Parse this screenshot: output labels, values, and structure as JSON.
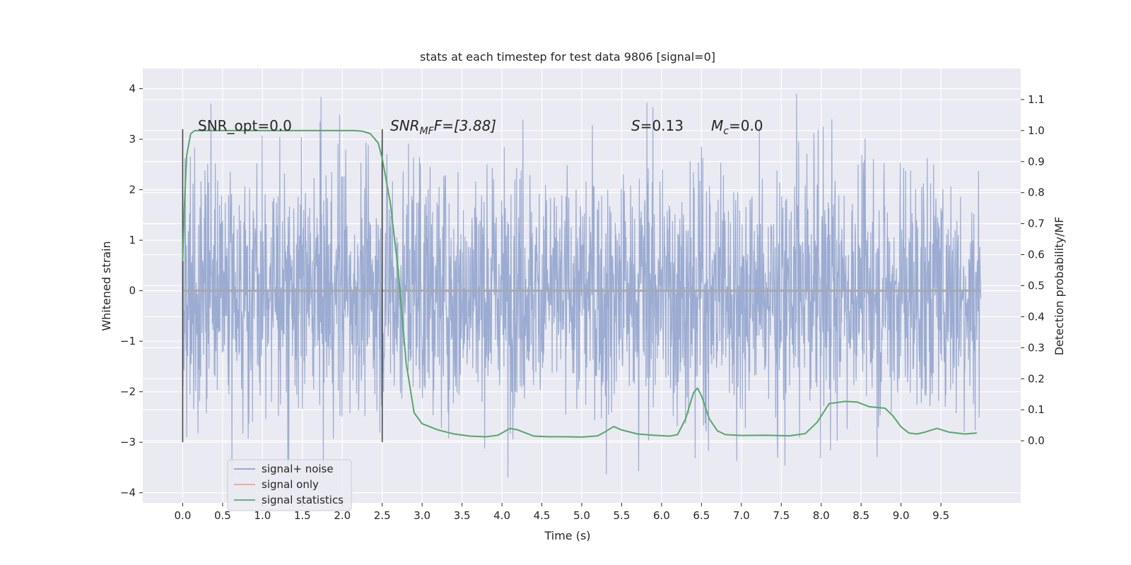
{
  "chart_data": {
    "type": "line",
    "title": "stats at each timestep for test data 9806 [signal=0]",
    "xlabel": "Time (s)",
    "ylabel": "Whitened strain",
    "ylabel_right": "Detection probability/MF",
    "xlim": [
      -0.5,
      10.5
    ],
    "ylim": [
      -4.2,
      4.4
    ],
    "ylim_right": [
      -0.2,
      1.2
    ],
    "x_ticks": [
      "0.0",
      "0.5",
      "1.0",
      "1.5",
      "2.0",
      "2.5",
      "3.0",
      "3.5",
      "4.0",
      "4.5",
      "5.0",
      "5.5",
      "6.0",
      "6.5",
      "7.0",
      "7.5",
      "8.0",
      "8.5",
      "9.0",
      "9.5"
    ],
    "y_ticks": [
      "4",
      "3",
      "2",
      "1",
      "0",
      "−1",
      "−2",
      "−3",
      "−4"
    ],
    "y_ticks_right": [
      "1.1",
      "1.0",
      "0.9",
      "0.8",
      "0.7",
      "0.6",
      "0.5",
      "0.4",
      "0.3",
      "0.2",
      "0.1",
      "0.0"
    ],
    "grid": true,
    "legend_placement": "lower-left",
    "annotations": {
      "snr_opt": "SNR_opt=0.0",
      "snr_mf_prefix": "SNR",
      "snr_mf_sub": "MF",
      "snr_mf_suffix": "=[3.88]",
      "s_label": "S",
      "s_value": "=0.13",
      "mc_label": "M",
      "mc_sub": "c",
      "mc_value": "=0.0"
    },
    "vertical_markers": [
      0.0,
      2.5
    ],
    "series": [
      {
        "name": "signal+ noise",
        "color": "#8da0cb",
        "amplitude": 1.35,
        "x_range": [
          0.0,
          10.0
        ]
      },
      {
        "name": "signal only",
        "color": "#e8a58c",
        "values": [
          0,
          0
        ]
      },
      {
        "name": "signal statistics",
        "color": "#55a868",
        "x": [
          0.0,
          0.02,
          0.05,
          0.1,
          0.15,
          0.2,
          0.3,
          0.5,
          1.0,
          1.5,
          2.0,
          2.15,
          2.25,
          2.35,
          2.45,
          2.5,
          2.6,
          2.7,
          2.75,
          2.8,
          2.9,
          3.0,
          3.2,
          3.4,
          3.6,
          3.8,
          3.95,
          4.1,
          4.2,
          4.4,
          4.6,
          4.8,
          5.0,
          5.2,
          5.3,
          5.4,
          5.5,
          5.7,
          5.9,
          6.1,
          6.2,
          6.3,
          6.4,
          6.45,
          6.5,
          6.6,
          6.7,
          6.8,
          7.0,
          7.3,
          7.6,
          7.8,
          7.95,
          8.1,
          8.3,
          8.45,
          8.6,
          8.8,
          8.9,
          9.0,
          9.1,
          9.2,
          9.3,
          9.45,
          9.6,
          9.8,
          9.95
        ],
        "values": [
          0.58,
          0.75,
          0.92,
          0.99,
          1.0,
          1.0,
          1.0,
          1.0,
          1.0,
          1.0,
          1.0,
          1.0,
          0.998,
          0.99,
          0.96,
          0.91,
          0.77,
          0.55,
          0.4,
          0.25,
          0.09,
          0.055,
          0.035,
          0.022,
          0.015,
          0.013,
          0.018,
          0.04,
          0.035,
          0.015,
          0.013,
          0.013,
          0.012,
          0.016,
          0.03,
          0.046,
          0.035,
          0.022,
          0.018,
          0.015,
          0.02,
          0.07,
          0.155,
          0.17,
          0.145,
          0.07,
          0.032,
          0.02,
          0.017,
          0.018,
          0.016,
          0.023,
          0.06,
          0.12,
          0.127,
          0.125,
          0.11,
          0.105,
          0.08,
          0.045,
          0.025,
          0.022,
          0.028,
          0.04,
          0.028,
          0.022,
          0.025
        ]
      }
    ]
  }
}
